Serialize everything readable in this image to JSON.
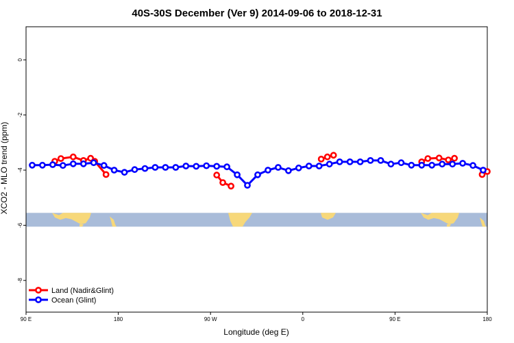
{
  "chart_data": {
    "type": "line",
    "title": "40S-30S December (Ver 9)   2014-09-06 to 2018-12-31",
    "xlabel": "Longitude (deg E)",
    "ylabel": "XCO2 - MLO trend (ppm)",
    "xlim": [
      90,
      540
    ],
    "ylim": [
      -9.15,
      1.2
    ],
    "x_ticks": [
      {
        "value": 90,
        "label": "90 E"
      },
      {
        "value": 180,
        "label": "180"
      },
      {
        "value": 270,
        "label": "90 W"
      },
      {
        "value": 360,
        "label": "0"
      },
      {
        "value": 450,
        "label": "90 E"
      },
      {
        "value": 540,
        "label": "180"
      }
    ],
    "y_ticks": [
      {
        "value": 0,
        "label": "0"
      },
      {
        "value": -2,
        "label": "-2"
      },
      {
        "value": -4,
        "label": "-4"
      },
      {
        "value": -6,
        "label": "-6"
      },
      {
        "value": -8,
        "label": "-8"
      }
    ],
    "grid": false,
    "legend_position": "bottom-left",
    "map_strip": {
      "y_top": -5.55,
      "y_bottom": -6.05,
      "ocean_color": "#a9bcd9",
      "land_color": "#f7d87a"
    },
    "series": [
      {
        "name": "Land (Nadir&Glint)",
        "color": "#ff0000",
        "segments": [
          [
            [
              118,
              -3.68
            ],
            [
              124,
              -3.58
            ],
            [
              136,
              -3.52
            ],
            [
              146,
              -3.65
            ],
            [
              153,
              -3.57
            ],
            [
              157,
              -3.68
            ],
            [
              168,
              -4.16
            ]
          ],
          [
            [
              276,
              -4.18
            ],
            [
              282,
              -4.45
            ],
            [
              290,
              -4.58
            ]
          ],
          [
            [
              378,
              -3.6
            ],
            [
              384,
              -3.52
            ],
            [
              390,
              -3.46
            ]
          ],
          [
            [
              476,
              -3.7
            ],
            [
              482,
              -3.58
            ],
            [
              493,
              -3.56
            ],
            [
              502,
              -3.63
            ],
            [
              508,
              -3.57
            ]
          ],
          [
            [
              535,
              -4.16
            ],
            [
              540,
              -4.05
            ]
          ]
        ]
      },
      {
        "name": "Ocean (Glint)",
        "color": "#0000ff",
        "segments": [
          [
            [
              96,
              -3.82
            ],
            [
              106,
              -3.82
            ],
            [
              116,
              -3.8
            ],
            [
              126,
              -3.83
            ],
            [
              136,
              -3.77
            ],
            [
              146,
              -3.77
            ],
            [
              156,
              -3.73
            ],
            [
              166,
              -3.83
            ],
            [
              176,
              -4.0
            ],
            [
              186,
              -4.08
            ],
            [
              196,
              -3.98
            ],
            [
              206,
              -3.94
            ],
            [
              216,
              -3.9
            ],
            [
              226,
              -3.9
            ],
            [
              236,
              -3.9
            ],
            [
              246,
              -3.85
            ],
            [
              256,
              -3.86
            ],
            [
              266,
              -3.84
            ],
            [
              276,
              -3.86
            ],
            [
              286,
              -3.88
            ],
            [
              296,
              -4.17
            ],
            [
              306,
              -4.55
            ],
            [
              316,
              -4.17
            ],
            [
              326,
              -4.0
            ],
            [
              336,
              -3.9
            ],
            [
              346,
              -4.02
            ],
            [
              356,
              -3.92
            ],
            [
              366,
              -3.85
            ],
            [
              376,
              -3.85
            ],
            [
              386,
              -3.78
            ],
            [
              396,
              -3.7
            ],
            [
              406,
              -3.7
            ],
            [
              416,
              -3.7
            ],
            [
              426,
              -3.65
            ],
            [
              436,
              -3.65
            ],
            [
              446,
              -3.78
            ],
            [
              456,
              -3.73
            ],
            [
              466,
              -3.82
            ],
            [
              476,
              -3.82
            ],
            [
              486,
              -3.82
            ],
            [
              496,
              -3.78
            ],
            [
              506,
              -3.78
            ],
            [
              516,
              -3.75
            ],
            [
              526,
              -3.83
            ],
            [
              536,
              -4.0
            ]
          ]
        ]
      }
    ]
  }
}
